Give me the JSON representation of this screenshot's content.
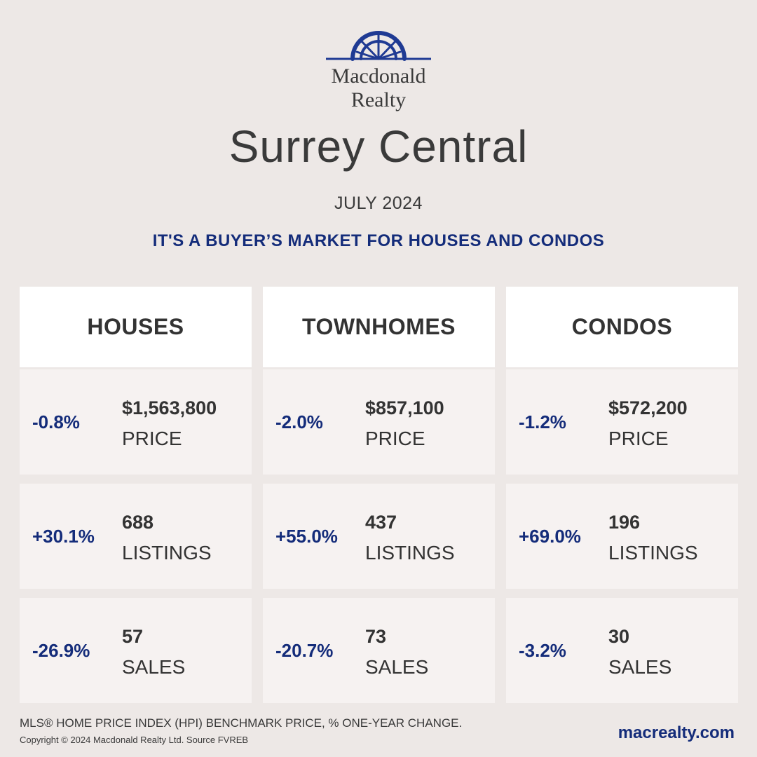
{
  "brand": {
    "logo_text_line1": "Macdonald",
    "logo_text_line2": "Realty",
    "logo_color": "#1f3a93"
  },
  "title": "Surrey Central",
  "period": "JULY 2024",
  "headline": "IT'S A BUYER’S MARKET FOR HOUSES AND CONDOS",
  "columns": [
    {
      "name": "HOUSES",
      "price": {
        "change": "-0.8%",
        "value": "$1,563,800",
        "label": "PRICE"
      },
      "listings": {
        "change": "+30.1%",
        "value": "688",
        "label": "LISTINGS"
      },
      "sales": {
        "change": "-26.9%",
        "value": "57",
        "label": "SALES"
      }
    },
    {
      "name": "TOWNHOMES",
      "price": {
        "change": "-2.0%",
        "value": "$857,100",
        "label": "PRICE"
      },
      "listings": {
        "change": "+55.0%",
        "value": "437",
        "label": "LISTINGS"
      },
      "sales": {
        "change": "-20.7%",
        "value": "73",
        "label": "SALES"
      }
    },
    {
      "name": "CONDOS",
      "price": {
        "change": "-1.2%",
        "value": "$572,200",
        "label": "PRICE"
      },
      "listings": {
        "change": "+69.0%",
        "value": "196",
        "label": "LISTINGS"
      },
      "sales": {
        "change": "-3.2%",
        "value": "30",
        "label": "SALES"
      }
    }
  ],
  "footer": {
    "note": "MLS® HOME PRICE INDEX (HPI) BENCHMARK PRICE, % ONE-YEAR CHANGE.",
    "copyright": "Copyright © 2024 Macdonald Realty Ltd. Source FVREB",
    "website": "macrealty.com"
  },
  "colors": {
    "accent": "#142c7a",
    "background": "#ede8e6",
    "header_bg": "#ffffff",
    "cell_bg": "#f6f2f1"
  }
}
